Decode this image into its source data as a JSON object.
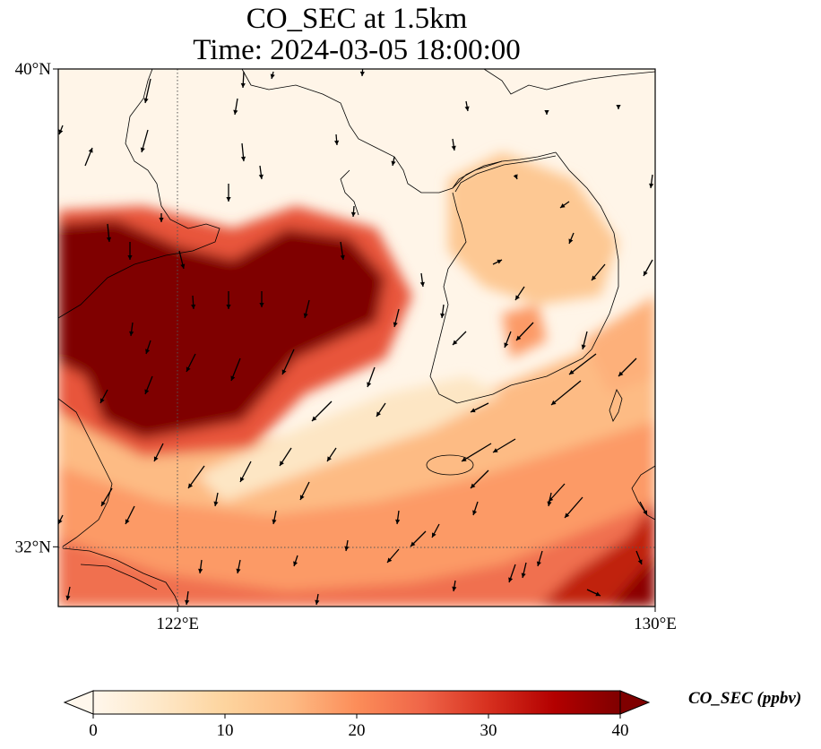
{
  "title_line1": "CO_SEC at 1.5km",
  "title_line2": "Time: 2024-03-05 18:00:00",
  "map": {
    "lon_range": [
      120,
      130
    ],
    "lat_range": [
      31,
      40
    ],
    "gridlines": {
      "lon": 122,
      "lat": 32,
      "style": "dotted"
    },
    "lat_ticks": [
      {
        "value": 40,
        "label": "40°N"
      },
      {
        "value": 32,
        "label": "32°N"
      }
    ],
    "lon_ticks": [
      {
        "value": 122,
        "label": "122°E"
      },
      {
        "value": 130,
        "label": "130°E"
      }
    ],
    "field_name": "CO_SEC",
    "colormap": "OrRd",
    "colors": [
      "#fff7ec",
      "#fee8c8",
      "#fdd49e",
      "#fdbb84",
      "#fc8d59",
      "#ef6548",
      "#d7301f",
      "#b30000",
      "#7f0000"
    ],
    "vector_color": "#000000",
    "coastline_color": "#000000"
  },
  "colorbar": {
    "label": "CO_SEC (ppbv)",
    "min": 0,
    "max": 40,
    "ticks": [
      0,
      10,
      20,
      30,
      40
    ],
    "extend": "both"
  }
}
